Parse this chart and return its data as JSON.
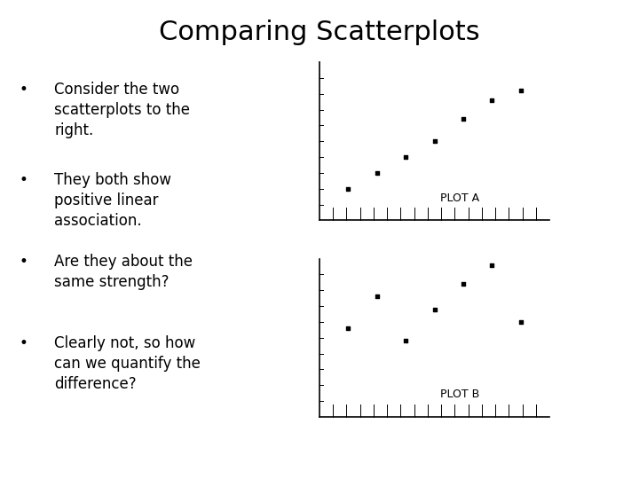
{
  "title": "Comparing Scatterplots",
  "background_color": "#ffffff",
  "text_color": "#000000",
  "bullets": [
    "Consider the two\nscatterplots to the\nright.",
    "They both show\npositive linear\nassociation.",
    "Are they about the\nsame strength?",
    "Clearly not, so how\ncan we quantify the\ndifference?"
  ],
  "plot_a_label": "PLOT A",
  "plot_b_label": "PLOT B",
  "plot_a_x": [
    1,
    2,
    3,
    4,
    5,
    6,
    7
  ],
  "plot_a_y": [
    1.0,
    1.5,
    2.0,
    2.5,
    3.2,
    3.8,
    4.1
  ],
  "plot_b_x": [
    1,
    2,
    3,
    4,
    5,
    6,
    7
  ],
  "plot_b_y": [
    2.8,
    3.8,
    2.4,
    3.4,
    4.2,
    4.8,
    3.0
  ],
  "title_fontsize": 22,
  "bullet_fontsize": 12,
  "plot_label_fontsize": 9
}
